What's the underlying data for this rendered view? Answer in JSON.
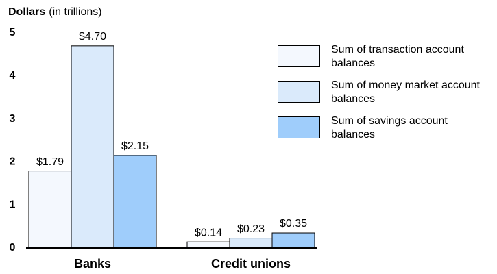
{
  "chart_data": {
    "type": "bar",
    "y_label": "Dollars",
    "y_unit": "(in trillions)",
    "categories": [
      "Banks",
      "Credit unions"
    ],
    "series": [
      {
        "name": "Sum of transaction account balances",
        "color": "#f4f8fe",
        "values": [
          1.79,
          0.14
        ],
        "value_labels": [
          "$1.79",
          "$0.14"
        ]
      },
      {
        "name": "Sum of money market account balances",
        "color": "#daeafb",
        "values": [
          4.7,
          0.23
        ],
        "value_labels": [
          "$4.70",
          "$0.23"
        ]
      },
      {
        "name": "Sum of savings account balances",
        "color": "#9fcdfb",
        "values": [
          2.15,
          0.35
        ],
        "value_labels": [
          "$2.15",
          "$0.35"
        ]
      }
    ],
    "ylim": [
      0,
      5
    ],
    "yticks": [
      0,
      1,
      2,
      3,
      4,
      5
    ],
    "grid": false,
    "legend": "right"
  }
}
